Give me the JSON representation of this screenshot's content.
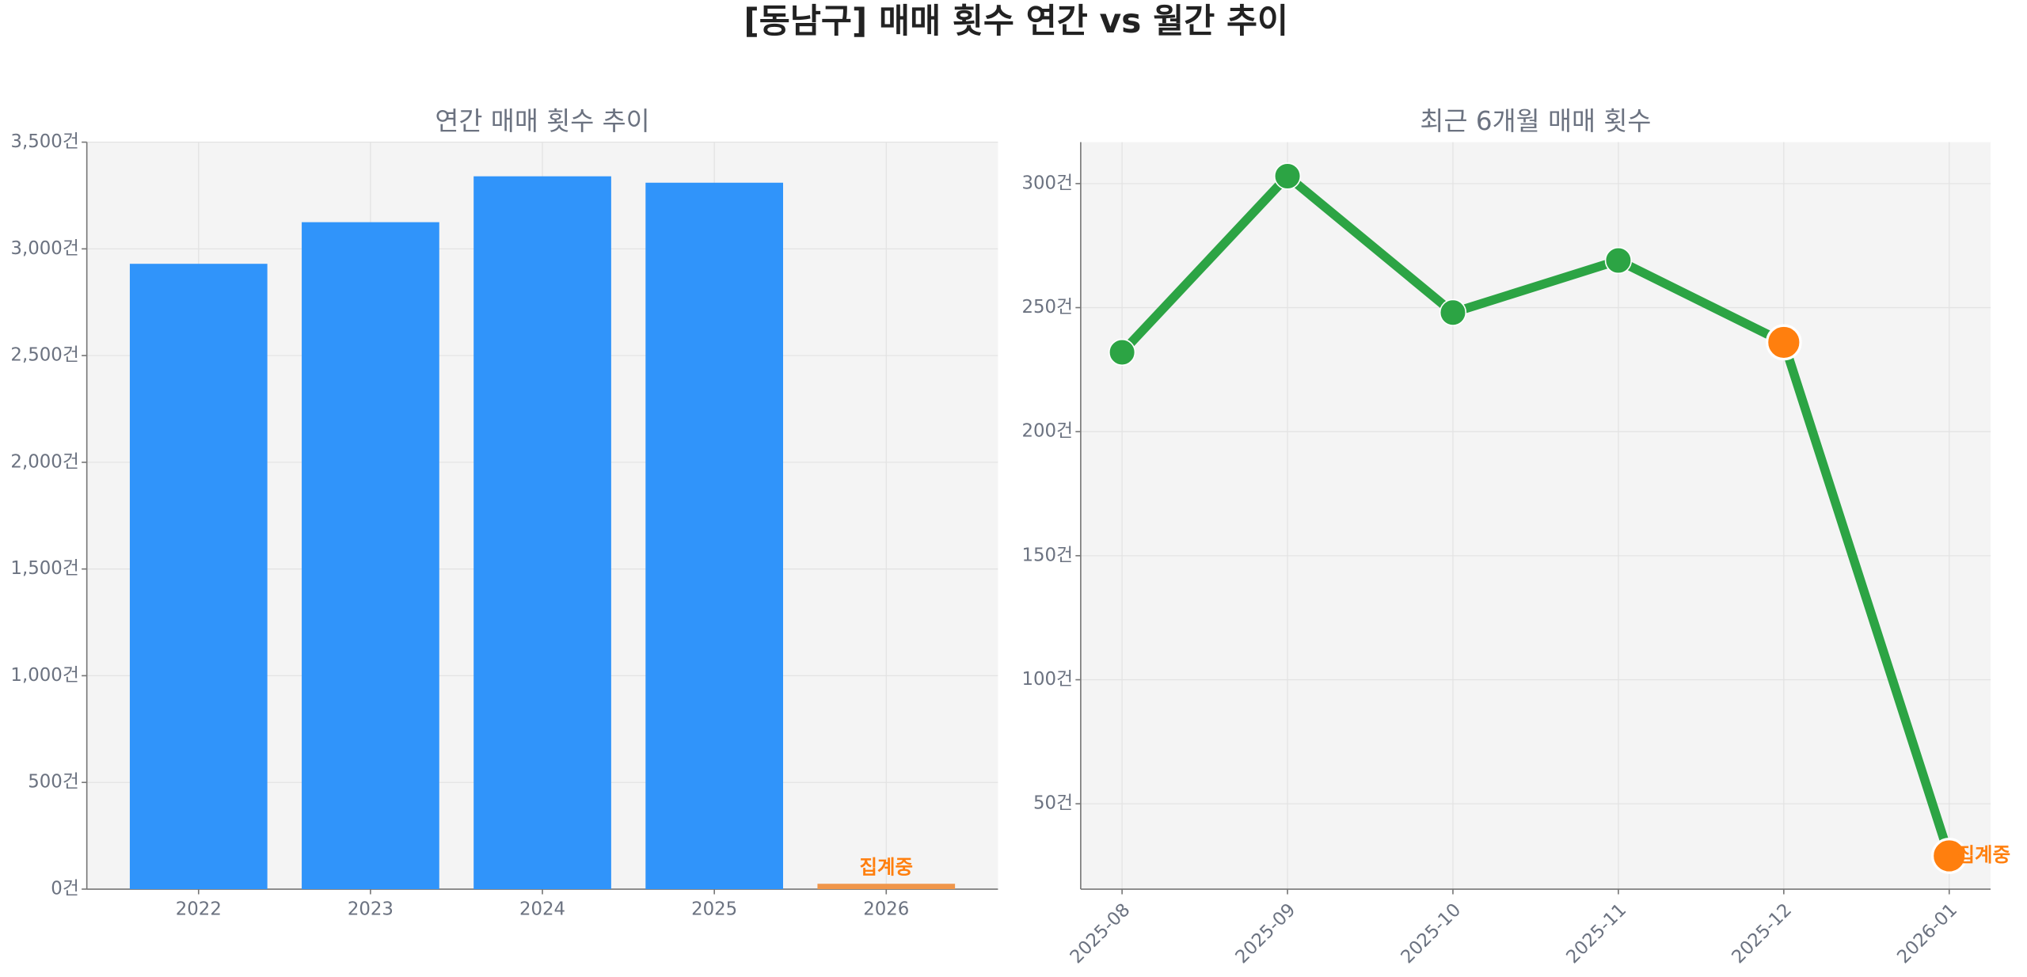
{
  "title": "[동남구] 매매 횟수 연간 vs 월간 추이",
  "chart_data": [
    {
      "type": "bar",
      "title": "연간 매매 횟수 추이",
      "categories": [
        "2022",
        "2023",
        "2024",
        "2025",
        "2026"
      ],
      "values": [
        2930,
        3125,
        3340,
        3310,
        25
      ],
      "colors": [
        "#3094fa",
        "#3094fa",
        "#3094fa",
        "#3094fa",
        "#f0964a"
      ],
      "annotation": "집계중",
      "annotation_color": "#ff7f0e",
      "ylim": [
        0,
        3500
      ],
      "yticks": [
        {
          "value": 0,
          "label": "0건"
        },
        {
          "value": 500,
          "label": "500건"
        },
        {
          "value": 1000,
          "label": "1,000건"
        },
        {
          "value": 1500,
          "label": "1,500건"
        },
        {
          "value": 2000,
          "label": "2,000건"
        },
        {
          "value": 2500,
          "label": "2,500건"
        },
        {
          "value": 3000,
          "label": "3,000건"
        },
        {
          "value": 3500,
          "label": "3,500건"
        }
      ],
      "grid": true
    },
    {
      "type": "line",
      "title": "최근 6개월 매매 횟수",
      "categories": [
        "2025-08",
        "2025-09",
        "2025-10",
        "2025-11",
        "2025-12",
        "2026-01"
      ],
      "series": [
        {
          "color": "#2ca444",
          "values": [
            232,
            303,
            248,
            269,
            236,
            29
          ],
          "marker_colors": [
            "#2ca444",
            "#2ca444",
            "#2ca444",
            "#2ca444",
            "#ff7f0e",
            "#ff7f0e"
          ]
        }
      ],
      "annotation": "집계중",
      "annotation_color": "#ff7f0e",
      "ylim": [
        15.6,
        316.7
      ],
      "yticks": [
        {
          "value": 50,
          "label": "50건"
        },
        {
          "value": 100,
          "label": "100건"
        },
        {
          "value": 150,
          "label": "150건"
        },
        {
          "value": 200,
          "label": "200건"
        },
        {
          "value": 250,
          "label": "250건"
        },
        {
          "value": 300,
          "label": "300건"
        }
      ],
      "grid": true
    }
  ]
}
